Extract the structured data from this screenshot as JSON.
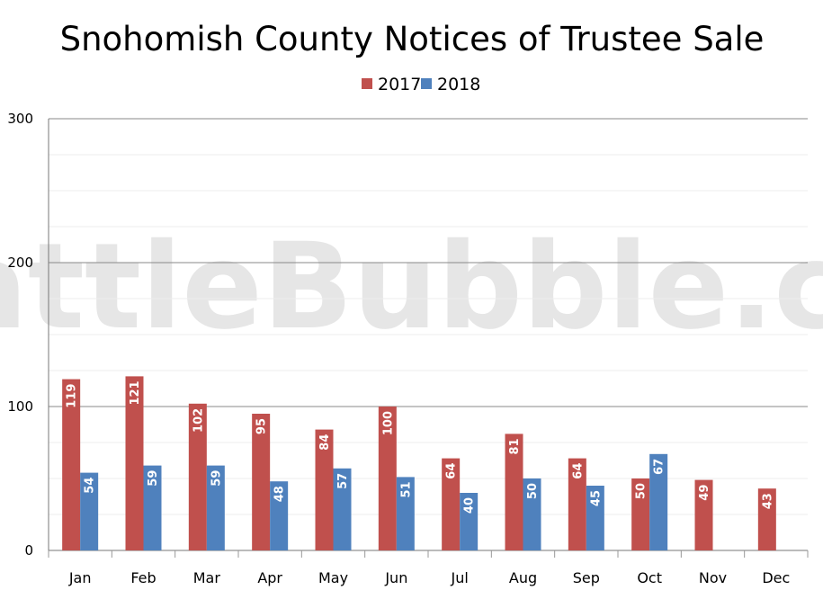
{
  "chart_data": {
    "type": "bar",
    "title": "Snohomish County Notices of Trustee Sale",
    "watermark": "SeattleBubble.com",
    "categories": [
      "Jan",
      "Feb",
      "Mar",
      "Apr",
      "May",
      "Jun",
      "Jul",
      "Aug",
      "Sep",
      "Oct",
      "Nov",
      "Dec"
    ],
    "series": [
      {
        "name": "2017",
        "color": "#c0504d",
        "values": [
          119,
          121,
          102,
          95,
          84,
          100,
          64,
          81,
          64,
          50,
          49,
          43
        ]
      },
      {
        "name": "2018",
        "color": "#4f81bd",
        "values": [
          54,
          59,
          59,
          48,
          57,
          51,
          40,
          50,
          45,
          67,
          null,
          null
        ]
      }
    ],
    "ylim": [
      0,
      300
    ],
    "yticks": [
      0,
      100,
      200,
      300
    ],
    "grid": true,
    "legend": "top-center",
    "data_labels": true
  }
}
